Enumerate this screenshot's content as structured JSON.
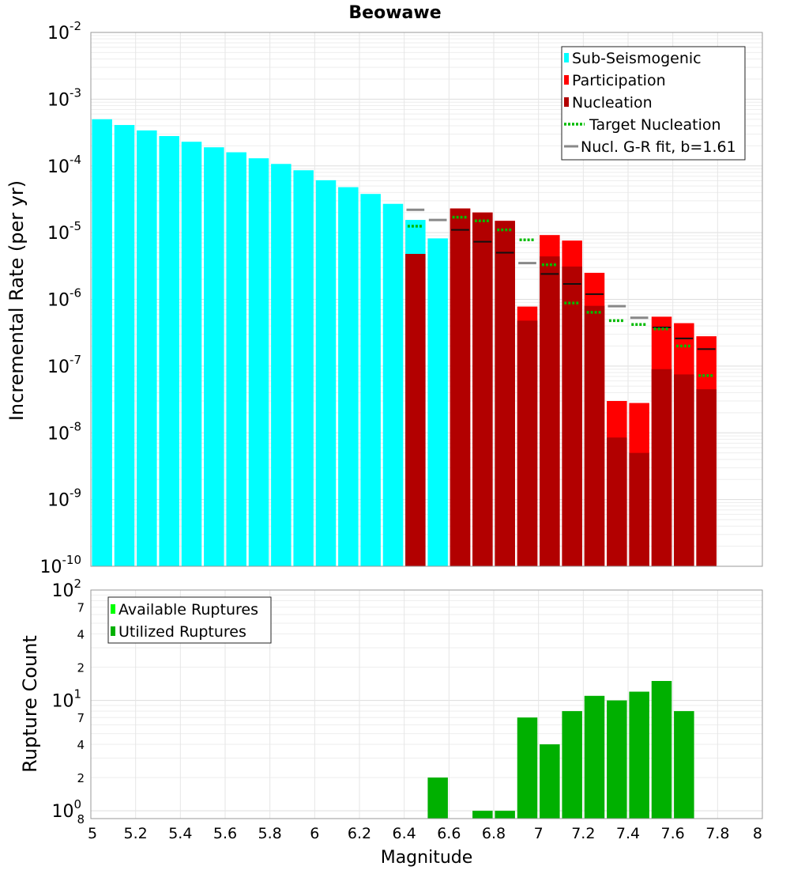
{
  "chart_data": [
    {
      "type": "bar",
      "title": "Beowawe",
      "ylabel": "Incremental Rate (per yr)",
      "yscale": "log",
      "ylim": [
        1e-10,
        0.01
      ],
      "xlim": [
        5,
        8
      ],
      "bar_width": 0.09,
      "y_ticks": [
        {
          "base": "10",
          "exp": "-2"
        },
        {
          "base": "10",
          "exp": "-3"
        },
        {
          "base": "10",
          "exp": "-4"
        },
        {
          "base": "10",
          "exp": "-5"
        },
        {
          "base": "10",
          "exp": "-6"
        },
        {
          "base": "10",
          "exp": "-7"
        },
        {
          "base": "10",
          "exp": "-8"
        },
        {
          "base": "10",
          "exp": "-9"
        },
        {
          "base": "10",
          "exp": "-10"
        }
      ],
      "legend": {
        "position": "top-right",
        "items": [
          {
            "label": "Sub-Seismogenic",
            "color": "#00ffff",
            "kind": "box"
          },
          {
            "label": "Participation",
            "color": "#ff0000",
            "kind": "box"
          },
          {
            "label": "Nucleation",
            "color": "#b20000",
            "kind": "box"
          },
          {
            "label": "Target Nucleation",
            "color": "#00bb00",
            "kind": "dotted"
          },
          {
            "label": "Nucl. G-R fit, b=1.61",
            "color": "#888888",
            "kind": "line"
          }
        ]
      },
      "series": [
        {
          "name": "Sub-Seismogenic",
          "color": "#00ffff",
          "x": [
            5.05,
            5.15,
            5.25,
            5.35,
            5.45,
            5.55,
            5.65,
            5.75,
            5.85,
            5.95,
            6.05,
            6.15,
            6.25,
            6.35,
            6.45,
            6.55
          ],
          "values": [
            0.0005,
            0.00041,
            0.00034,
            0.00028,
            0.00023,
            0.00019,
            0.00016,
            0.00013,
            0.000107,
            8.6e-05,
            6.1e-05,
            4.8e-05,
            3.8e-05,
            2.7e-05,
            1.55e-05,
            8.2e-06
          ]
        },
        {
          "name": "Participation",
          "color": "#ff0000",
          "x": [
            6.65,
            6.75,
            6.85,
            6.95,
            7.05,
            7.15,
            7.25,
            7.35,
            7.45,
            7.55,
            7.65,
            7.75
          ],
          "values": [
            2.3e-05,
            2e-05,
            1.5e-05,
            7.8e-07,
            9.2e-06,
            7.6e-06,
            2.5e-06,
            3e-08,
            2.8e-08,
            5.5e-07,
            4.4e-07,
            2.8e-07
          ]
        },
        {
          "name": "Nucleation",
          "color": "#b20000",
          "x": [
            6.45,
            6.65,
            6.75,
            6.85,
            6.95,
            7.05,
            7.15,
            7.25,
            7.35,
            7.45,
            7.55,
            7.65,
            7.75
          ],
          "values": [
            4.8e-06,
            2.3e-05,
            2e-05,
            1.5e-05,
            4.8e-07,
            4.4e-06,
            3.1e-06,
            8e-07,
            8.5e-09,
            5e-09,
            9e-08,
            7.5e-08,
            4.5e-08
          ]
        },
        {
          "name": "Target Nucleation",
          "color": "#00bb00",
          "x": [
            6.45,
            6.65,
            6.75,
            6.85,
            6.95,
            7.05,
            7.15,
            7.25,
            7.35,
            7.45,
            7.55,
            7.65,
            7.75
          ],
          "values": [
            1.25e-05,
            1.7e-05,
            1.5e-05,
            1.1e-05,
            7.8e-06,
            3.3e-06,
            8.8e-07,
            6.4e-07,
            4.8e-07,
            4.2e-07,
            3.6e-07,
            2e-07,
            7.2e-08
          ]
        },
        {
          "name": "Nucl. G-R fit, b=1.61",
          "color": "#888888",
          "x": [
            6.45,
            6.55,
            6.95,
            7.35,
            7.45
          ],
          "values": [
            2.2e-05,
            1.55e-05,
            3.5e-06,
            7.9e-07,
            5.3e-07
          ]
        },
        {
          "name": "",
          "color": "#111111",
          "x": [
            6.65,
            6.75,
            6.85,
            7.05,
            7.15,
            7.25,
            7.55,
            7.65,
            7.75
          ],
          "values": [
            1.1e-05,
            7.3e-06,
            5e-06,
            2.4e-06,
            1.7e-06,
            1.2e-06,
            3.8e-07,
            2.6e-07,
            1.8e-07
          ]
        }
      ]
    },
    {
      "type": "bar",
      "ylabel": "Rupture Count",
      "xlabel": "Magnitude",
      "yscale": "log",
      "ylim": [
        0.85,
        100
      ],
      "xlim": [
        5,
        8
      ],
      "bar_width": 0.09,
      "x_ticks": [
        "5",
        "5.2",
        "5.4",
        "5.6",
        "5.8",
        "6",
        "6.2",
        "6.4",
        "6.6",
        "6.8",
        "7",
        "7.2",
        "7.4",
        "7.6",
        "7.8",
        "8"
      ],
      "y_major_ticks": [
        {
          "value": 100,
          "base": "10",
          "exp": "2"
        },
        {
          "value": 10,
          "base": "10",
          "exp": "1"
        },
        {
          "value": 1,
          "base": "10",
          "exp": "0"
        }
      ],
      "y_minor_labels": [
        {
          "value": 70,
          "label": "7"
        },
        {
          "value": 40,
          "label": "4"
        },
        {
          "value": 20,
          "label": "2"
        },
        {
          "value": 7,
          "label": "7"
        },
        {
          "value": 4,
          "label": "4"
        },
        {
          "value": 2,
          "label": "2"
        },
        {
          "value": 0.85,
          "label": "8"
        }
      ],
      "legend": {
        "position": "top-left",
        "items": [
          {
            "label": "Available Ruptures",
            "color": "#00ff00",
            "kind": "box"
          },
          {
            "label": "Utilized Ruptures",
            "color": "#00b000",
            "kind": "box"
          }
        ]
      },
      "series": [
        {
          "name": "Utilized Ruptures",
          "color": "#00b000",
          "x": [
            6.55,
            6.75,
            6.85,
            6.95,
            7.05,
            7.15,
            7.25,
            7.35,
            7.45,
            7.55,
            7.65
          ],
          "values": [
            2,
            1,
            1,
            7,
            4,
            8,
            11,
            10,
            12,
            15,
            8
          ]
        }
      ]
    }
  ]
}
